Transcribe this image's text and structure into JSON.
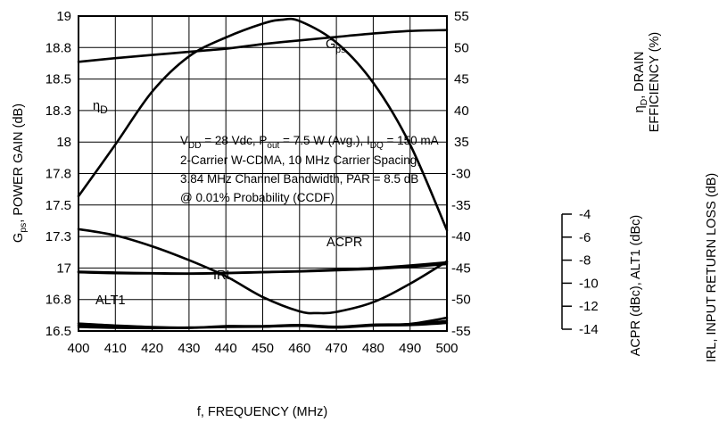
{
  "chart_data": {
    "type": "line",
    "x_label": "f, FREQUENCY (MHz)",
    "x_ticks": [
      "400",
      "410",
      "420",
      "430",
      "440",
      "450",
      "460",
      "470",
      "480",
      "490",
      "500"
    ],
    "xlim": [
      400,
      500
    ],
    "left_axis": {
      "label_main": "G",
      "label_sub": "ps",
      "label_rest": ", POWER GAIN (dB)",
      "ticks": [
        "19",
        "18.8",
        "18.5",
        "18.3",
        "18",
        "17.8",
        "17.5",
        "17.3",
        "17",
        "16.8",
        "16.5"
      ],
      "ylim": [
        16.5,
        19
      ]
    },
    "right_axis_1": {
      "label_line1_main": "η",
      "label_line1_sub": "D",
      "label_line1_rest": ", DRAIN",
      "label_line2": "EFFICIENCY (%)",
      "ticks": [
        "55",
        "50",
        "45",
        "40",
        "35"
      ],
      "ylim": [
        -55,
        55
      ]
    },
    "right_axis_2": {
      "label": "ACPR (dBc), ALT1 (dBc)",
      "ticks": [
        "-30",
        "-35",
        "-40",
        "-45",
        "-50",
        "-55"
      ]
    },
    "right_axis_3": {
      "label": "IRL, INPUT RETURN LOSS (dB)",
      "ticks": [
        "-4",
        "-6",
        "-8",
        "-10",
        "-12",
        "-14"
      ],
      "ylim": [
        -14,
        -4
      ]
    },
    "annotation": {
      "l1_a": "V",
      "l1_a_sub": "DD",
      "l1_b": " = 28 Vdc, P",
      "l1_b_sub": "out",
      "l1_c": " = 7.5 W (Avg.), I",
      "l1_c_sub": "DQ",
      "l1_d": " = 150 mA",
      "line2": "2-Carrier W-CDMA, 10 MHz Carrier Spacing,",
      "line3": "3.84 MHz Channel Bandwidth, PAR = 8.5 dB",
      "line4": "@ 0.01% Probability (CCDF)"
    },
    "series": [
      {
        "name": "G",
        "name_sub": "ps",
        "axis": "left",
        "x": [
          400,
          410,
          420,
          430,
          440,
          450,
          455,
          460,
          470,
          480,
          490,
          500
        ],
        "y": [
          17.57,
          17.98,
          18.4,
          18.68,
          18.83,
          18.94,
          18.97,
          18.96,
          18.79,
          18.47,
          17.98,
          17.3
        ]
      },
      {
        "name": "η",
        "name_sub": "D",
        "axis": "right_1",
        "x": [
          400,
          410,
          420,
          430,
          440,
          450,
          460,
          470,
          480,
          490,
          500
        ],
        "y": [
          39,
          40.3,
          41.4,
          42.5,
          43.6,
          45.2,
          46.5,
          47.7,
          48.9,
          49.8,
          50.1
        ]
      },
      {
        "name": "ACPR",
        "axis": "right_1",
        "x": [
          400,
          410,
          420,
          430,
          440,
          450,
          460,
          470,
          480,
          490,
          500
        ],
        "y": [
          -34.5,
          -34.8,
          -34.9,
          -35,
          -34.8,
          -34.5,
          -34.2,
          -33.8,
          -33.3,
          -32.6,
          -31.6
        ]
      },
      {
        "name": "",
        "axis": "right_1",
        "x": [
          400,
          410,
          420,
          430,
          440,
          450,
          460,
          470,
          480,
          490,
          500
        ],
        "y": [
          -34.3,
          -34.6,
          -34.8,
          -34.9,
          -34.7,
          -34.4,
          -34.1,
          -33.6,
          -33,
          -32.1,
          -31
        ]
      },
      {
        "name": "IRL",
        "axis": "right_3",
        "x": [
          400,
          410,
          420,
          430,
          440,
          450,
          460,
          465,
          470,
          480,
          490,
          500
        ],
        "y": [
          -5.3,
          -5.85,
          -6.8,
          -8,
          -9.4,
          -11.2,
          -12.45,
          -12.6,
          -12.5,
          -11.65,
          -10.05,
          -8.1
        ]
      },
      {
        "name": "ALT1",
        "axis": "right_1",
        "x": [
          400,
          410,
          420,
          430,
          440,
          450,
          460,
          470,
          480,
          490,
          500
        ],
        "y": [
          -52.4,
          -53.1,
          -53.6,
          -53.8,
          -53.5,
          -53.4,
          -53.1,
          -53.6,
          -53,
          -52.5,
          -50.4
        ]
      },
      {
        "name": "",
        "axis": "right_1",
        "x": [
          400,
          410,
          420,
          430,
          440,
          450,
          460,
          470,
          480,
          490,
          500
        ],
        "y": [
          -53,
          -53.6,
          -53.9,
          -53.9,
          -53.3,
          -53.3,
          -52.9,
          -53.5,
          -52.8,
          -52.6,
          -51.5
        ]
      },
      {
        "name": "",
        "axis": "right_1",
        "x": [
          400,
          410,
          420,
          430,
          440,
          450,
          460,
          470,
          480,
          490,
          500
        ],
        "y": [
          -53.6,
          -53.9,
          -54,
          -53.9,
          -53.6,
          -53.5,
          -53.2,
          -53.8,
          -53.1,
          -52.9,
          -52.2
        ]
      }
    ]
  }
}
